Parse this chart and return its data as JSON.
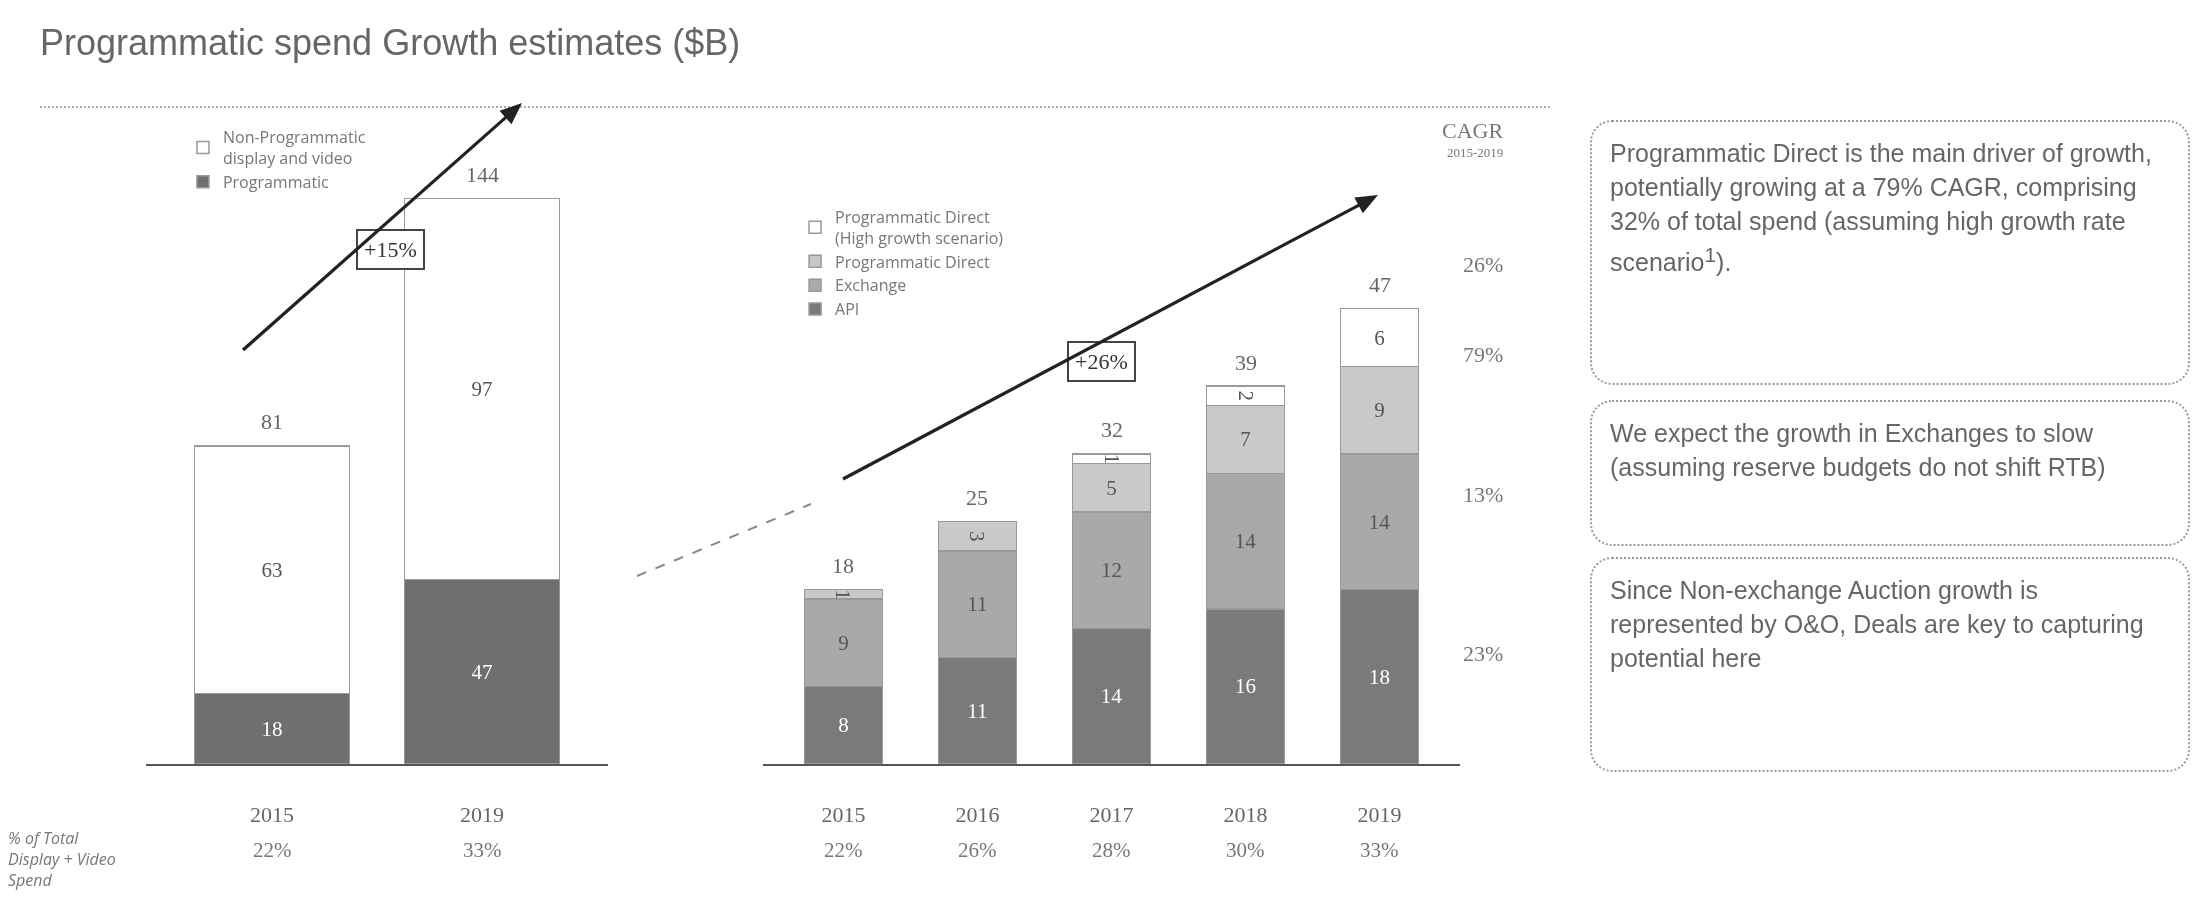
{
  "chart_data": [
    {
      "type": "bar",
      "title": "Programmatic spend Growth estimates ($B)",
      "categories": [
        "2015",
        "2019"
      ],
      "stacked": true,
      "data_labels": true,
      "grid": false,
      "legend": "top left",
      "tick_labels": "x",
      "series": [
        {
          "name": "Programmatic",
          "color": "#6f6f6f",
          "values": [
            18,
            47
          ]
        },
        {
          "name": "Non-Programmatic display and video",
          "color": "#ffffff",
          "values": [
            63,
            97
          ]
        }
      ],
      "totals": [
        "81",
        "144"
      ],
      "annotations": [
        "+15%",
        "% of Total Display + Video Spend",
        "22%",
        "33%"
      ]
    },
    {
      "type": "bar",
      "categories": [
        "2015",
        "2016",
        "2017",
        "2018",
        "2019"
      ],
      "stacked": true,
      "data_labels": true,
      "grid": false,
      "legend": "top left",
      "tick_labels": "x",
      "series": [
        {
          "name": "API",
          "color": "#7a7a7a",
          "values": [
            8,
            11,
            14,
            16,
            18
          ]
        },
        {
          "name": "Exchange",
          "color": "#a9a9a9",
          "values": [
            9,
            11,
            12,
            14,
            14
          ]
        },
        {
          "name": "Programmatic Direct",
          "color": "#c9c9c9",
          "values": [
            1,
            3,
            5,
            7,
            9
          ]
        },
        {
          "name": "Programmatic Direct (High growth scenario)",
          "color": "#ffffff",
          "values": [
            null,
            null,
            1,
            2,
            6
          ]
        }
      ],
      "totals": [
        "18",
        "25",
        "32",
        "39",
        "47"
      ],
      "annotations": [
        "+26%",
        "CAGR",
        "2015-2019",
        "26%",
        "79%",
        "13%",
        "23%",
        "Programmatic Direct is the main driver of growth, potentially growing at a 79% CAGR, comprising 32% of total spend (assuming high growth rate scenario$^{1}$).",
        "We expect the growth in Exchanges to slow (assuming reserve budgets do not shift RTB)",
        "Since Non-exchange Auction growth is represented by O&O, Deals are key to capturing potential here",
        "22%",
        "26%",
        "28%",
        "30%",
        "33%"
      ]
    }
  ]
}
